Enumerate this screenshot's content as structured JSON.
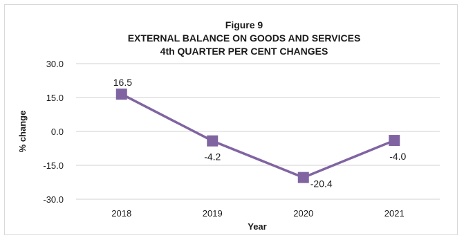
{
  "chart_data": {
    "type": "line",
    "title_lines": [
      "Figure 9",
      "EXTERNAL BALANCE ON GOODS AND SERVICES",
      "4th QUARTER PER CENT CHANGES"
    ],
    "xlabel": "Year",
    "ylabel": "% change",
    "categories": [
      "2018",
      "2019",
      "2020",
      "2021"
    ],
    "series": [
      {
        "values": [
          16.5,
          -4.2,
          -20.4,
          -4.0
        ]
      }
    ],
    "data_labels": [
      "16.5",
      "-4.2",
      "-20.4",
      "-4.0"
    ],
    "y_ticks": [
      "30.0",
      "15.0",
      "0.0",
      "-15.0",
      "-30.0"
    ],
    "y_tick_values": [
      30,
      15,
      0,
      -15,
      -30
    ],
    "ylim": [
      -30,
      30
    ],
    "grid": true,
    "legend": "none",
    "line_color": "#8064a2",
    "marker_color": "#8064a2",
    "grid_color": "#d0d0d0"
  }
}
